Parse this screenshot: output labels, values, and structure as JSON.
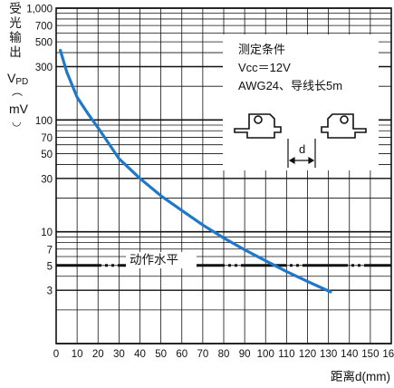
{
  "chart_data": {
    "type": "line",
    "y_scale": "log",
    "x_scale": "linear",
    "xlim": [
      0,
      160
    ],
    "ylim": [
      1,
      1000
    ],
    "x_ticks": [
      "0",
      "10",
      "20",
      "30",
      "40",
      "50",
      "60",
      "70",
      "80",
      "90",
      "100",
      "110",
      "120",
      "130",
      "140",
      "150",
      "160"
    ],
    "y_ticks": [
      "1,000",
      "700",
      "500",
      "300",
      "100",
      "70",
      "50",
      "30",
      "10",
      "7",
      "5",
      "3"
    ],
    "y_tick_values": [
      1000,
      700,
      500,
      300,
      100,
      70,
      50,
      30,
      10,
      7,
      5,
      3
    ],
    "ylabel_lines": [
      "受",
      "光",
      "输",
      "出"
    ],
    "ylabel_symbol": "V",
    "ylabel_subscript": "PD",
    "ylabel_unit": "mV",
    "xlabel": "距离d(mm)",
    "grid": true,
    "series": [
      {
        "color": "#1f78c8",
        "x": [
          2,
          5,
          10,
          15,
          20,
          25,
          30,
          40,
          50,
          60,
          70,
          80,
          90,
          100,
          110,
          120,
          131
        ],
        "y": [
          420,
          270,
          160,
          115,
          85,
          62,
          45,
          30,
          21,
          15.5,
          11.5,
          8.8,
          6.9,
          5.5,
          4.4,
          3.6,
          2.9
        ]
      }
    ],
    "threshold": {
      "value": 5,
      "label": "动作水平"
    },
    "conditions": {
      "title": "测定条件",
      "line1": "Vcc＝12V",
      "line2": "AWG24、导线长5m",
      "distance_label": "d"
    }
  }
}
